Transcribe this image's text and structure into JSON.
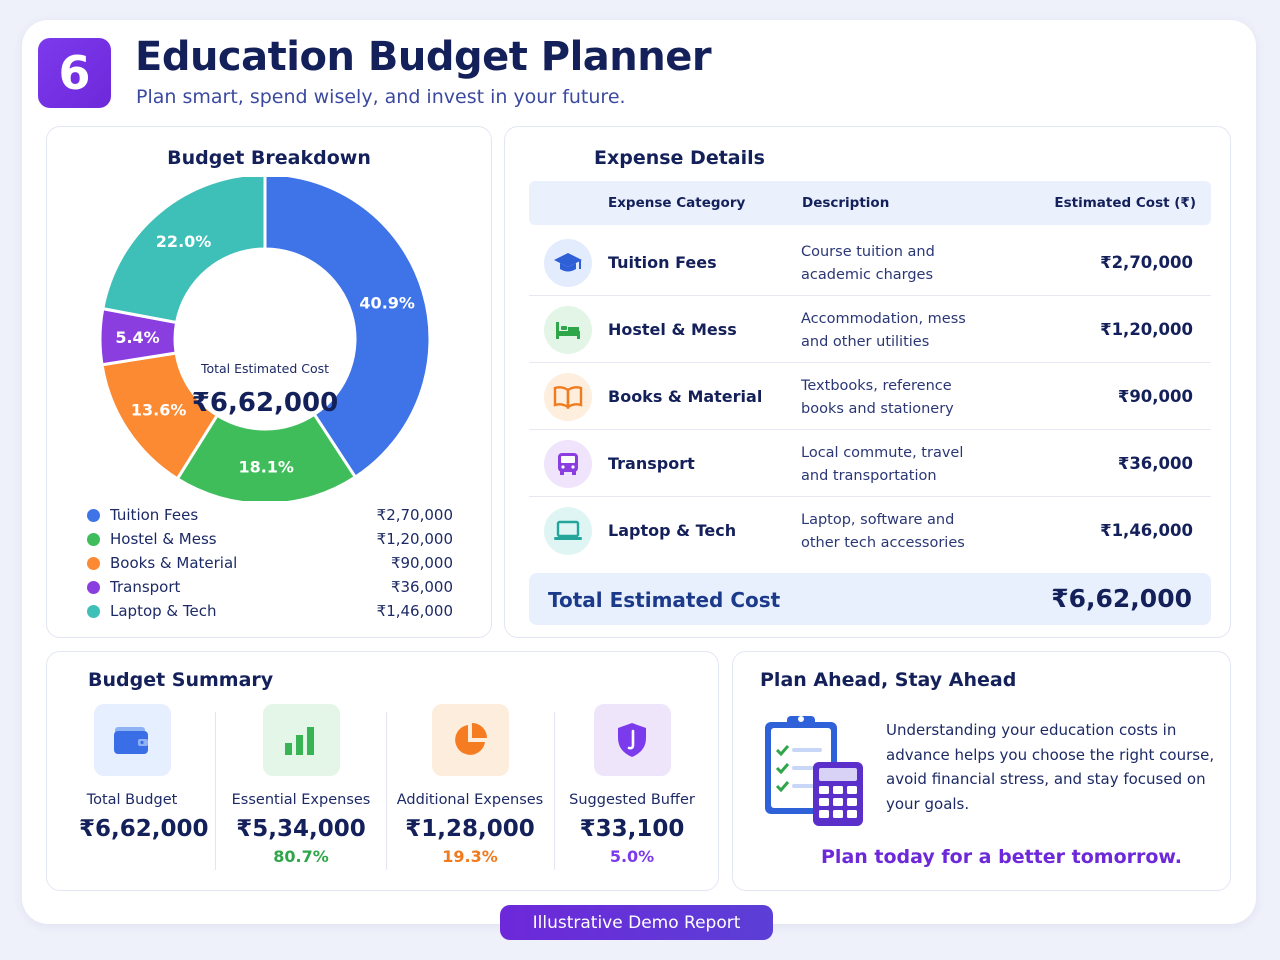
{
  "header": {
    "badge": "6",
    "title": "Education Budget Planner",
    "subtitle": "Plan smart, spend wisely, and invest in your future."
  },
  "colors": {
    "tuition": "#3f74e8",
    "hostel": "#3fbd5b",
    "books": "#fb8a33",
    "transport": "#8b3ee0",
    "laptop": "#3ebfb8",
    "accent": "#6d28d9"
  },
  "breakdown": {
    "title": "Budget Breakdown",
    "center_label": "Total Estimated Cost",
    "center_value": "₹6,62,000"
  },
  "chart_data": {
    "type": "pie",
    "title": "Budget Breakdown",
    "categories": [
      "Tuition Fees",
      "Hostel & Mess",
      "Books & Material",
      "Transport",
      "Laptop & Tech"
    ],
    "values": [
      270000,
      120000,
      90000,
      36000,
      146000
    ],
    "percent_labels": [
      "40.9%",
      "18.1%",
      "13.6%",
      "5.4%",
      "22.0%"
    ],
    "value_labels": [
      "₹2,70,000",
      "₹1,20,000",
      "₹90,000",
      "₹36,000",
      "₹1,46,000"
    ],
    "colors": [
      "#3f74e8",
      "#3fbd5b",
      "#fb8a33",
      "#8b3ee0",
      "#3ebfb8"
    ],
    "legend": "bottom"
  },
  "details": {
    "title": "Expense Details",
    "headers": {
      "category": "Expense Category",
      "description": "Description",
      "cost": "Estimated Cost (₹)"
    },
    "rows": [
      {
        "icon": "graduation-cap-icon",
        "name": "Tuition Fees",
        "desc1": "Course tuition and",
        "desc2": "academic charges",
        "cost": "₹2,70,000"
      },
      {
        "icon": "bed-icon",
        "name": "Hostel & Mess",
        "desc1": "Accommodation, mess",
        "desc2": "and other utilities",
        "cost": "₹1,20,000"
      },
      {
        "icon": "book-icon",
        "name": "Books & Material",
        "desc1": "Textbooks, reference",
        "desc2": "books and stationery",
        "cost": "₹90,000"
      },
      {
        "icon": "bus-icon",
        "name": "Transport",
        "desc1": "Local commute, travel",
        "desc2": "and transportation",
        "cost": "₹36,000"
      },
      {
        "icon": "laptop-icon",
        "name": "Laptop & Tech",
        "desc1": "Laptop, software and",
        "desc2": "other tech accessories",
        "cost": "₹1,46,000"
      }
    ],
    "total_label": "Total Estimated Cost",
    "total_value": "₹6,62,000"
  },
  "summary": {
    "title": "Budget Summary",
    "items": [
      {
        "icon": "wallet-icon",
        "label": "Total Budget",
        "value": "₹6,62,000",
        "pct": ""
      },
      {
        "icon": "bar-chart-icon",
        "label": "Essential Expenses",
        "value": "₹5,34,000",
        "pct": "80.7%"
      },
      {
        "icon": "pie-chart-icon",
        "label": "Additional Expenses",
        "value": "₹1,28,000",
        "pct": "19.3%"
      },
      {
        "icon": "shield-icon",
        "label": "Suggested Buffer",
        "value": "₹33,100",
        "pct": "5.0%"
      }
    ]
  },
  "plan": {
    "title": "Plan Ahead, Stay Ahead",
    "text": "Understanding your education costs in advance helps you choose the right course, avoid financial stress, and stay focused on your goals.",
    "cta": "Plan today for a better tomorrow."
  },
  "footer": {
    "pill": "Illustrative Demo Report"
  }
}
